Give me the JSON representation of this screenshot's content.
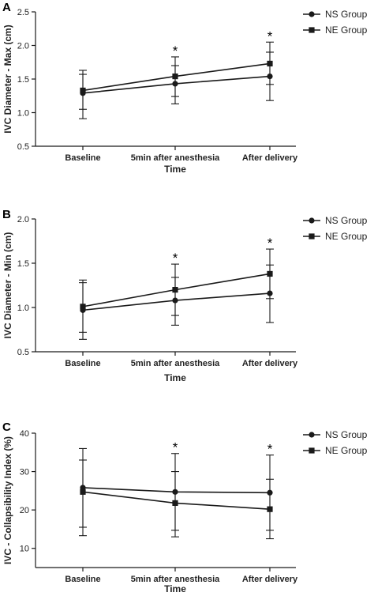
{
  "chart_data": [
    {
      "type": "line",
      "panel": "A",
      "categories": [
        "Baseline",
        "5min after anesthesia",
        "After delivery"
      ],
      "xlabel": "Time",
      "ylabel": "IVC Diameter - Max (cm)",
      "ylim": [
        0.5,
        2.5
      ],
      "yticks": [
        "0.5",
        "1.0",
        "1.5",
        "2.0",
        "2.5"
      ],
      "legend_position": "top-right",
      "significance_marker": "*",
      "significant_categories": [
        1,
        2
      ],
      "series": [
        {
          "name": "NS Group",
          "marker": "circle",
          "values": [
            1.29,
            1.43,
            1.54
          ],
          "err_low": [
            0.91,
            1.13,
            1.18
          ],
          "err_high": [
            1.63,
            1.7,
            1.9
          ]
        },
        {
          "name": "NE Group",
          "marker": "square",
          "values": [
            1.33,
            1.54,
            1.73
          ],
          "err_low": [
            1.05,
            1.24,
            1.42
          ],
          "err_high": [
            1.57,
            1.83,
            2.05
          ]
        }
      ]
    },
    {
      "type": "line",
      "panel": "B",
      "categories": [
        "Baseline",
        "5min after anesthesia",
        "After delivery"
      ],
      "xlabel": "Time",
      "ylabel": "IVC Diameter - Min (cm)",
      "ylim": [
        0.5,
        2.0
      ],
      "yticks": [
        "0.5",
        "1.0",
        "1.5",
        "2.0"
      ],
      "legend_position": "top-right",
      "significance_marker": "*",
      "significant_categories": [
        1,
        2
      ],
      "series": [
        {
          "name": "NS Group",
          "marker": "circle",
          "values": [
            0.97,
            1.08,
            1.16
          ],
          "err_low": [
            0.64,
            0.8,
            0.83
          ],
          "err_high": [
            1.28,
            1.34,
            1.48
          ]
        },
        {
          "name": "NE Group",
          "marker": "square",
          "values": [
            1.01,
            1.2,
            1.38
          ],
          "err_low": [
            0.72,
            0.91,
            1.1
          ],
          "err_high": [
            1.31,
            1.49,
            1.66
          ]
        }
      ]
    },
    {
      "type": "line",
      "panel": "C",
      "categories": [
        "Baseline",
        "5min after anesthesia",
        "After delivery"
      ],
      "xlabel": "Time",
      "ylabel": "IVC - Collapsibility Index (%)",
      "ylim": [
        5,
        40
      ],
      "yticks": [
        "10",
        "20",
        "30",
        "40"
      ],
      "legend_position": "top-right",
      "significance_marker": "*",
      "significant_categories": [
        1,
        2
      ],
      "series": [
        {
          "name": "NS Group",
          "marker": "circle",
          "values": [
            25.8,
            24.7,
            24.5
          ],
          "err_low": [
            15.5,
            14.7,
            14.7
          ],
          "err_high": [
            36.0,
            34.7,
            34.3
          ]
        },
        {
          "name": "NE Group",
          "marker": "square",
          "values": [
            24.7,
            21.8,
            20.2
          ],
          "err_low": [
            13.3,
            13.0,
            12.5
          ],
          "err_high": [
            33.0,
            30.0,
            28.0
          ]
        }
      ]
    }
  ]
}
